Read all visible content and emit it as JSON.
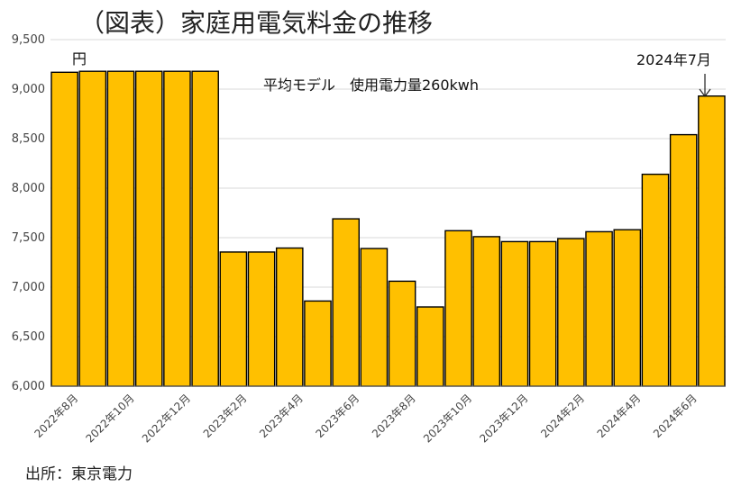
{
  "chart_data": {
    "type": "bar",
    "title": "（図表）家庭用電気料金の推移",
    "source": "出所：東京電力",
    "unit_label": "円",
    "subtitle": "平均モデル　使用電力量260kwh",
    "annotation": "2024年7月",
    "ylim": [
      6000,
      9500
    ],
    "yticks": [
      6000,
      6500,
      7000,
      7500,
      8000,
      8500,
      9000,
      9500
    ],
    "ytick_labels": [
      "6,000",
      "6,500",
      "7,000",
      "7,500",
      "8,000",
      "8,500",
      "9,000",
      "9,500"
    ],
    "grid": true,
    "bar_color": "#FFC000",
    "bar_edge_color": "#000000",
    "categories": [
      "2022年8月",
      "2022年9月",
      "2022年10月",
      "2022年11月",
      "2022年12月",
      "2023年1月",
      "2023年2月",
      "2023年3月",
      "2023年4月",
      "2023年5月",
      "2023年6月",
      "2023年7月",
      "2023年8月",
      "2023年9月",
      "2023年10月",
      "2023年11月",
      "2023年12月",
      "2024年1月",
      "2024年2月",
      "2024年3月",
      "2024年4月",
      "2024年5月",
      "2024年6月",
      "2024年7月"
    ],
    "xtick_labels": [
      "2022年8月",
      "",
      "2022年10月",
      "",
      "2022年12月",
      "",
      "2023年2月",
      "",
      "2023年4月",
      "",
      "2023年6月",
      "",
      "2023年8月",
      "",
      "2023年10月",
      "",
      "2023年12月",
      "",
      "2024年2月",
      "",
      "2024年4月",
      "",
      "2024年6月",
      ""
    ],
    "values": [
      9170,
      9180,
      9180,
      9180,
      9180,
      9180,
      7355,
      7355,
      7395,
      6860,
      7690,
      7390,
      7060,
      6800,
      7570,
      7510,
      7460,
      7460,
      7490,
      7560,
      7580,
      8140,
      8540,
      8930
    ]
  }
}
